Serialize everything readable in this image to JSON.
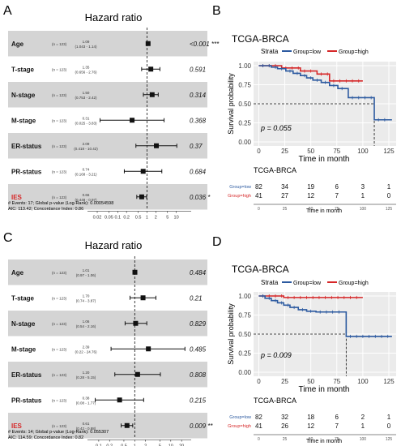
{
  "panels": {
    "A": {
      "letter": "A",
      "title": "Hazard ratio",
      "rows": [
        {
          "label": "Age",
          "n": "(n = 123)",
          "hr": "1.09",
          "ci": "(1.043 - 1.14)",
          "hr_value": 1.09,
          "ci_low": 1.043,
          "ci_high": 1.14,
          "p": "<0.001",
          "sig": "***",
          "highlight": false
        },
        {
          "label": "T-stage",
          "n": "(n = 123)",
          "hr": "1.35",
          "ci": "(0.656 - 2.76)",
          "hr_value": 1.35,
          "ci_low": 0.656,
          "ci_high": 2.76,
          "p": "0.591",
          "sig": "",
          "highlight": false
        },
        {
          "label": "N-stage",
          "n": "(n = 123)",
          "hr": "1.50",
          "ci": "(0.753 - 2.42)",
          "hr_value": 1.5,
          "ci_low": 0.753,
          "ci_high": 2.42,
          "p": "0.314",
          "sig": "",
          "highlight": false
        },
        {
          "label": "M-stage",
          "n": "(n = 123)",
          "hr": "0.31",
          "ci": "(0.025 - 3.83)",
          "hr_value": 0.31,
          "ci_low": 0.025,
          "ci_high": 3.83,
          "p": "0.368",
          "sig": "",
          "highlight": false
        },
        {
          "label": "ER-status",
          "n": "(n = 123)",
          "hr": "2.09",
          "ci": "(0.418 - 10.42)",
          "hr_value": 2.09,
          "ci_low": 0.418,
          "ci_high": 10.42,
          "p": "0.37",
          "sig": "",
          "highlight": false
        },
        {
          "label": "PR-status",
          "n": "(n = 123)",
          "hr": "0.74",
          "ci": "(0.168 - 3.21)",
          "hr_value": 0.74,
          "ci_low": 0.168,
          "ci_high": 3.21,
          "p": "0.684",
          "sig": "",
          "highlight": false
        },
        {
          "label": "IES",
          "n": "(n = 123)",
          "hr": "0.66",
          "ci": "(0.448 - 0.97)",
          "hr_value": 0.66,
          "ci_low": 0.448,
          "ci_high": 0.97,
          "p": "0.036",
          "sig": "*",
          "highlight": true
        }
      ],
      "ticks": [
        "0.02",
        "0.05",
        "0.1",
        "0.2",
        "0.5",
        "1",
        "2",
        "5",
        "10"
      ],
      "tick_values": [
        0.02,
        0.05,
        0.1,
        0.2,
        0.5,
        1,
        2,
        5,
        10
      ],
      "xlim": [
        0.012,
        25
      ],
      "footer_lines": [
        "# Events: 17; Global p-value (Log-Rank): 0.00054598",
        "AIC: 113.42; Concordance Index: 0.86"
      ]
    },
    "B": {
      "letter": "B",
      "title": "TCGA-BRCA",
      "legend_title": "Strata",
      "groups": [
        "Group=low",
        "Group=high"
      ],
      "colors": {
        "low": "#2c5aa0",
        "high": "#d62728"
      },
      "ylabel": "Survival probability",
      "xlabel": "Time in month",
      "y_ticks": [
        "0.00",
        "0.25",
        "0.50",
        "0.75",
        "1.00"
      ],
      "y_tick_values": [
        0,
        0.25,
        0.5,
        0.75,
        1
      ],
      "x_ticks": [
        "0",
        "25",
        "50",
        "75",
        "100",
        "125"
      ],
      "x_tick_values": [
        0,
        25,
        50,
        75,
        100,
        125
      ],
      "xlim": [
        -5,
        132
      ],
      "pvalue": "p = 0.055",
      "median_x": 111,
      "low_steps": [
        [
          0,
          1
        ],
        [
          12,
          0.98
        ],
        [
          18,
          0.96
        ],
        [
          26,
          0.93
        ],
        [
          33,
          0.9
        ],
        [
          40,
          0.87
        ],
        [
          46,
          0.84
        ],
        [
          52,
          0.81
        ],
        [
          60,
          0.78
        ],
        [
          68,
          0.74
        ],
        [
          76,
          0.7
        ],
        [
          86,
          0.58
        ],
        [
          111,
          0.29
        ],
        [
          128,
          0.29
        ]
      ],
      "high_steps": [
        [
          0,
          1
        ],
        [
          22,
          0.97
        ],
        [
          40,
          0.93
        ],
        [
          56,
          0.89
        ],
        [
          68,
          0.8
        ],
        [
          100,
          0.8
        ]
      ],
      "table_title": "TCGA-BRCA",
      "table_rows": [
        {
          "label": "Group=low",
          "counts": [
            "82",
            "34",
            "19",
            "6",
            "3",
            "1"
          ]
        },
        {
          "label": "Group=high",
          "counts": [
            "41",
            "27",
            "12",
            "7",
            "1",
            "0"
          ]
        }
      ],
      "table_xlabel": "Time in month"
    },
    "C": {
      "letter": "C",
      "title": "Hazard ratio",
      "rows": [
        {
          "label": "Age",
          "n": "(n = 123)",
          "hr": "1.01",
          "ci": "(0.97 - 1.06)",
          "hr_value": 1.01,
          "ci_low": 0.97,
          "ci_high": 1.06,
          "p": "0.484",
          "sig": "",
          "highlight": false
        },
        {
          "label": "T-stage",
          "n": "(n = 123)",
          "hr": "1.70",
          "ci": "(0.74 - 3.87)",
          "hr_value": 1.7,
          "ci_low": 0.74,
          "ci_high": 3.87,
          "p": "0.21",
          "sig": "",
          "highlight": false
        },
        {
          "label": "N-stage",
          "n": "(n = 123)",
          "hr": "1.06",
          "ci": "(0.54 - 2.16)",
          "hr_value": 1.06,
          "ci_low": 0.54,
          "ci_high": 2.16,
          "p": "0.829",
          "sig": "",
          "highlight": false
        },
        {
          "label": "M-stage",
          "n": "(n = 123)",
          "hr": "2.39",
          "ci": "(0.22 - 24.76)",
          "hr_value": 2.39,
          "ci_low": 0.22,
          "ci_high": 24.76,
          "p": "0.485",
          "sig": "",
          "highlight": false
        },
        {
          "label": "ER-status",
          "n": "(n = 123)",
          "hr": "1.20",
          "ci": "(0.28 - 5.15)",
          "hr_value": 1.2,
          "ci_low": 0.28,
          "ci_high": 5.15,
          "p": "0.808",
          "sig": "",
          "highlight": false
        },
        {
          "label": "PR-status",
          "n": "(n = 123)",
          "hr": "0.38",
          "ci": "(0.08 - 1.77)",
          "hr_value": 0.38,
          "ci_low": 0.08,
          "ci_high": 1.77,
          "p": "0.215",
          "sig": "",
          "highlight": false
        },
        {
          "label": "IES",
          "n": "(n = 123)",
          "hr": "0.61",
          "ci": "(0.42 - 0.88)",
          "hr_value": 0.61,
          "ci_low": 0.42,
          "ci_high": 0.88,
          "p": "0.009",
          "sig": "**",
          "highlight": true
        }
      ],
      "ticks": [
        "0.1",
        "0.2",
        "0.5",
        "1",
        "2",
        "5",
        "10",
        "20"
      ],
      "tick_values": [
        0.1,
        0.2,
        0.5,
        1,
        2,
        5,
        10,
        20
      ],
      "xlim": [
        0.06,
        30
      ],
      "footer_lines": [
        "# Events: 14; Global p-value (Log-Rank): 0.055307",
        "AIC: 114.59; Concordance Index: 0.82"
      ]
    },
    "D": {
      "letter": "D",
      "title": "TCGA-BRCA",
      "legend_title": "Strata",
      "groups": [
        "Group=low",
        "Group=high"
      ],
      "colors": {
        "low": "#2c5aa0",
        "high": "#d62728"
      },
      "ylabel": "Survival probability",
      "xlabel": "Time in month",
      "y_ticks": [
        "0.00",
        "0.25",
        "0.50",
        "0.75",
        "1.00"
      ],
      "y_tick_values": [
        0,
        0.25,
        0.5,
        0.75,
        1
      ],
      "x_ticks": [
        "0",
        "25",
        "50",
        "75",
        "100",
        "125"
      ],
      "x_tick_values": [
        0,
        25,
        50,
        75,
        100,
        125
      ],
      "xlim": [
        -5,
        132
      ],
      "pvalue": "p = 0.009",
      "median_x": 84,
      "low_steps": [
        [
          0,
          1
        ],
        [
          6,
          0.97
        ],
        [
          12,
          0.94
        ],
        [
          18,
          0.91
        ],
        [
          24,
          0.88
        ],
        [
          30,
          0.85
        ],
        [
          38,
          0.82
        ],
        [
          46,
          0.8
        ],
        [
          55,
          0.79
        ],
        [
          84,
          0.47
        ],
        [
          128,
          0.47
        ]
      ],
      "high_steps": [
        [
          0,
          1
        ],
        [
          24,
          0.98
        ],
        [
          100,
          0.98
        ]
      ],
      "table_title": "TCGA-BRCA",
      "table_rows": [
        {
          "label": "Group=low",
          "counts": [
            "82",
            "32",
            "18",
            "6",
            "2",
            "1"
          ]
        },
        {
          "label": "Group=high",
          "counts": [
            "41",
            "26",
            "12",
            "7",
            "1",
            "0"
          ]
        }
      ],
      "table_xlabel": "Time in month"
    }
  }
}
